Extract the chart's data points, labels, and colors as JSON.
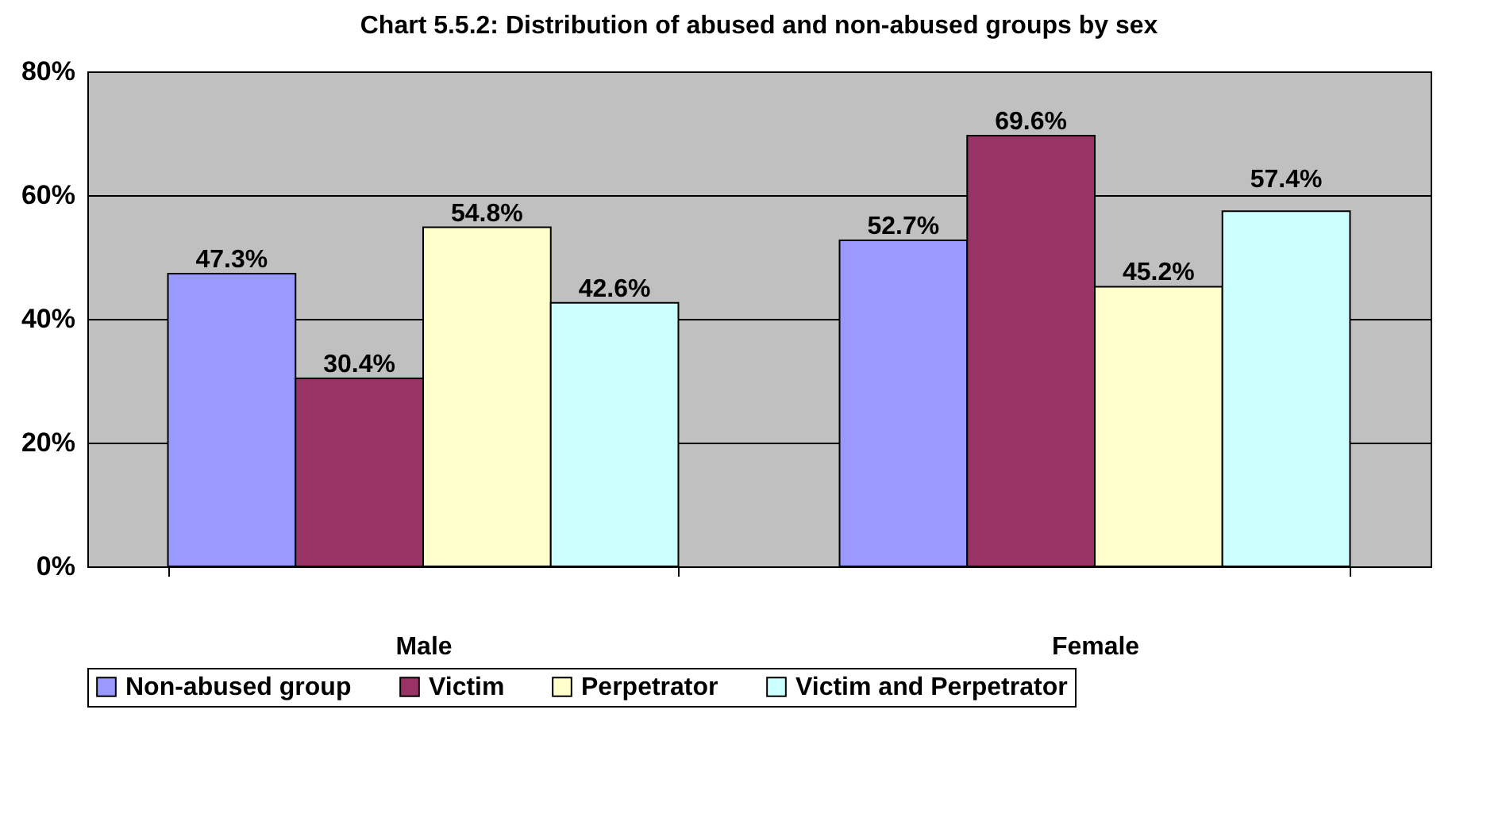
{
  "chart_data": {
    "type": "bar",
    "title": "Chart 5.5.2: Distribution of abused and non-abused groups by sex",
    "categories": [
      "Male",
      "Female"
    ],
    "series": [
      {
        "name": "Non-abused group",
        "color": "#9999ff",
        "values": [
          47.3,
          52.7
        ],
        "value_labels": [
          "47.3%",
          "52.7%"
        ]
      },
      {
        "name": "Victim",
        "color": "#993366",
        "values": [
          30.4,
          69.6
        ],
        "value_labels": [
          "30.4%",
          "69.6%"
        ]
      },
      {
        "name": "Perpetrator",
        "color": "#ffffcc",
        "values": [
          54.8,
          45.2
        ],
        "value_labels": [
          "54.8%",
          "45.2%"
        ]
      },
      {
        "name": "Victim and Perpetrator",
        "color": "#ccffff",
        "values": [
          42.6,
          57.4
        ],
        "value_labels": [
          "42.6%",
          "57.4%"
        ]
      }
    ],
    "ylim": [
      0,
      80
    ],
    "yticks": [
      {
        "value": 0,
        "label": "0%"
      },
      {
        "value": 20,
        "label": "20%"
      },
      {
        "value": 40,
        "label": "40%"
      },
      {
        "value": 60,
        "label": "60%"
      },
      {
        "value": 80,
        "label": "80%"
      }
    ],
    "grid": "y",
    "legend": "bottom"
  }
}
